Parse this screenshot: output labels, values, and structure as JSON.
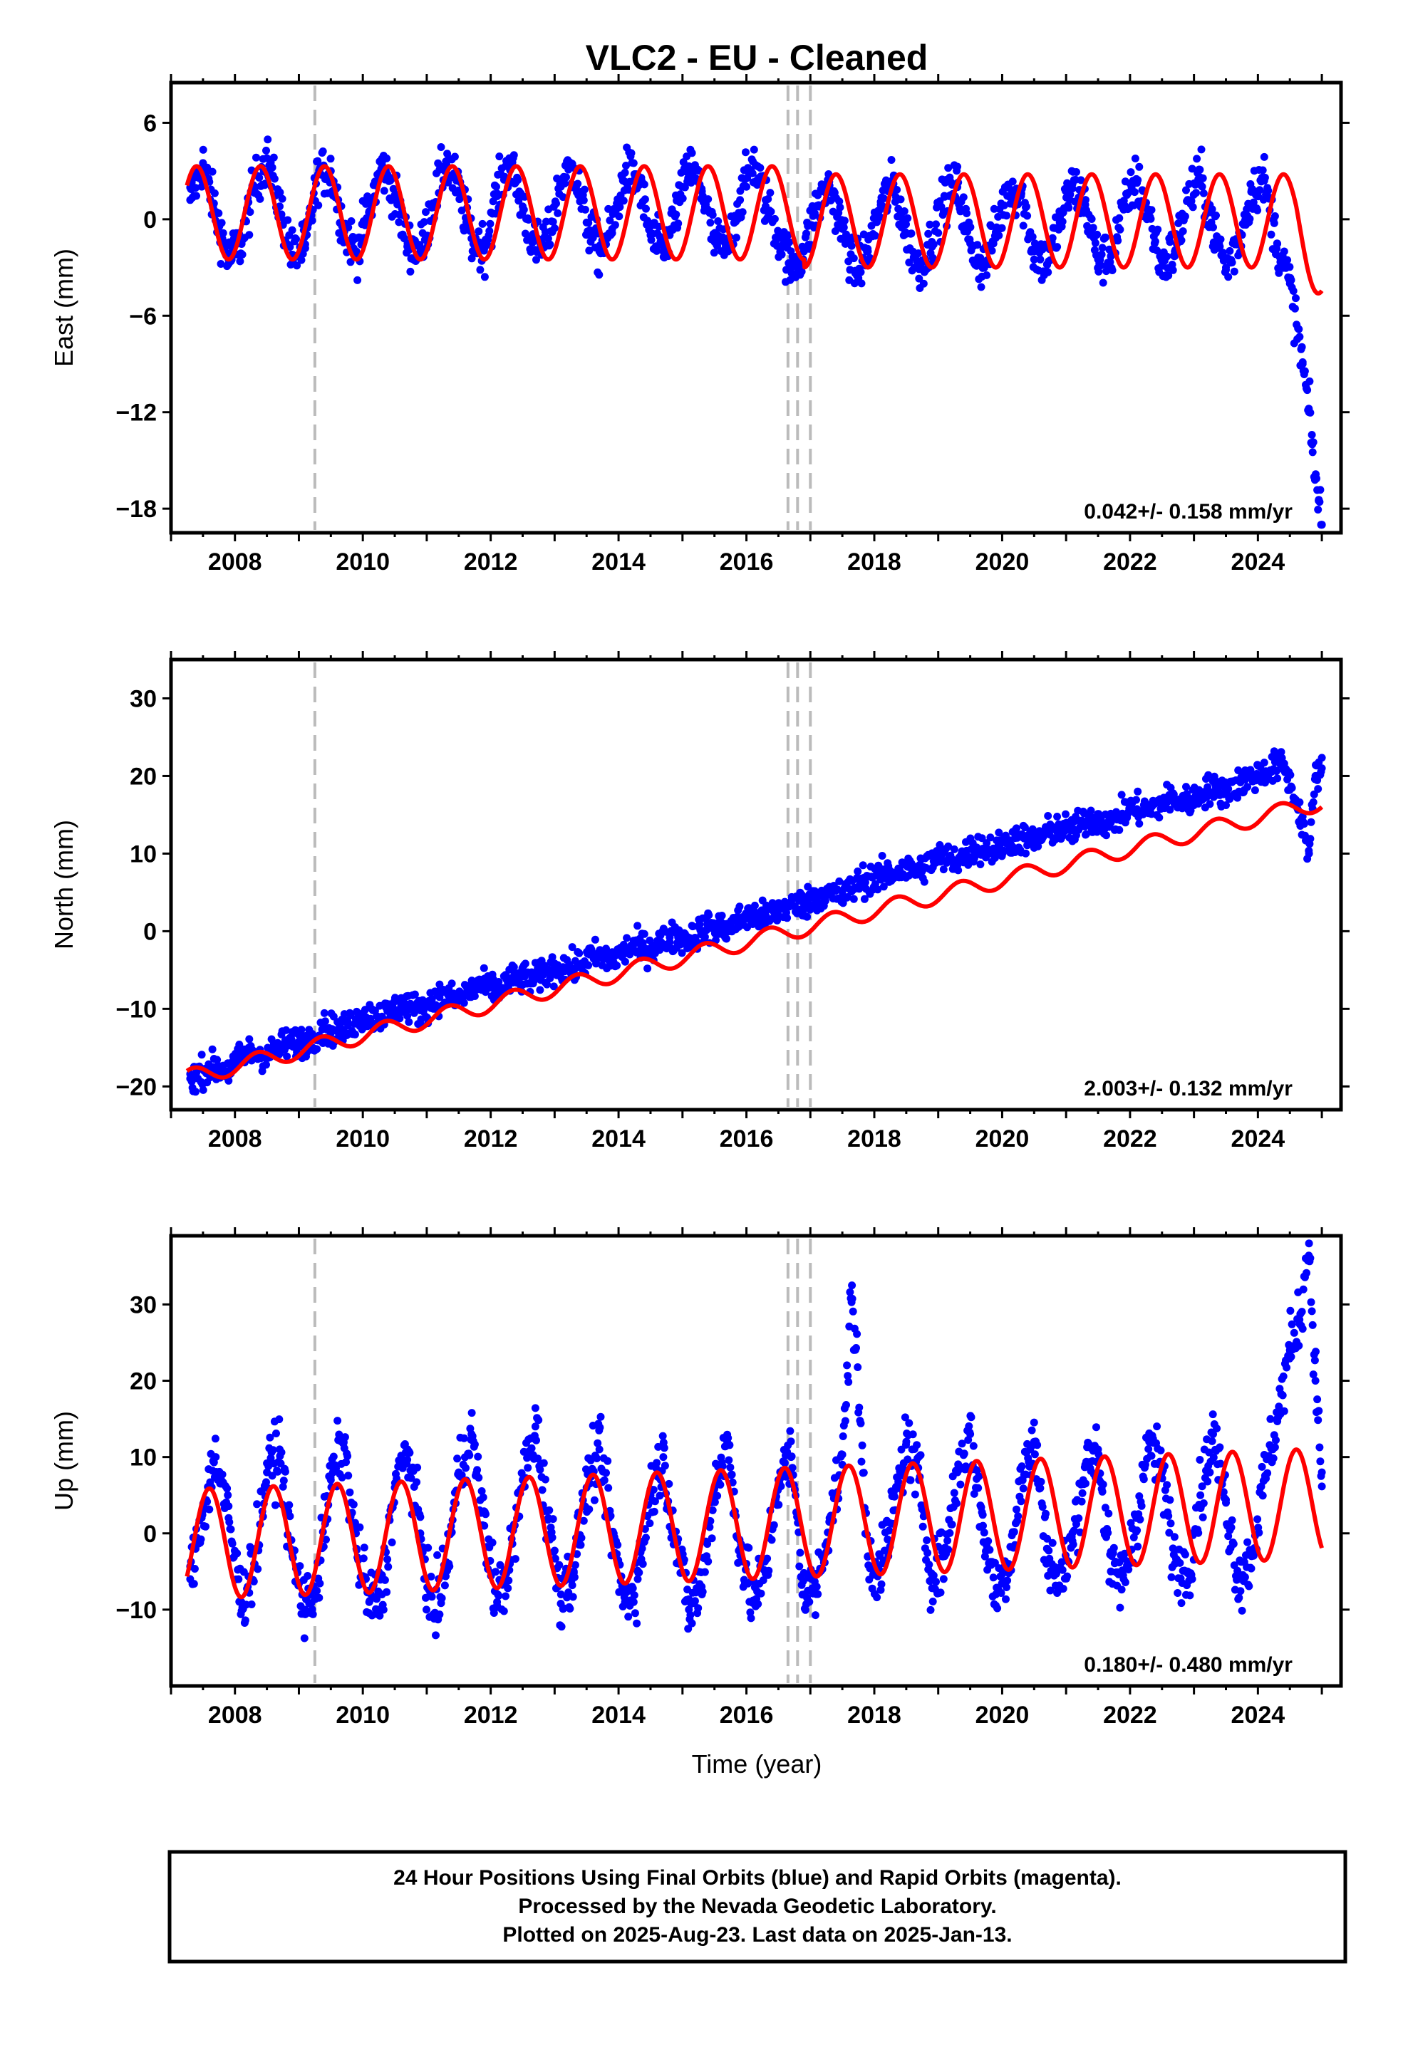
{
  "title": "VLC2  - EU - Cleaned",
  "footer": {
    "lines": [
      "24 Hour Positions Using Final Orbits (blue) and Rapid Orbits (magenta).",
      "Processed by the Nevada Geodetic Laboratory.",
      "Plotted on 2025-Aug-23. Last data on 2025-Jan-13."
    ]
  },
  "colors": {
    "data": "#0000ff",
    "model": "#ff0000",
    "breaks": "#bbbbbb",
    "frame": "#000000"
  },
  "chart_data": [
    {
      "type": "scatter",
      "panel": "east",
      "ylabel": "East (mm)",
      "xlabel": "",
      "xlim": [
        2007.0,
        2025.3
      ],
      "ylim": [
        -19.5,
        8.5
      ],
      "xticks": [
        2008,
        2010,
        2012,
        2014,
        2016,
        2018,
        2020,
        2022,
        2024
      ],
      "xtick_labels": [
        "2008",
        "2010",
        "2012",
        "2014",
        "2016",
        "2018",
        "2020",
        "2022",
        "2024"
      ],
      "yticks": [
        6,
        0,
        -6,
        -12,
        -18
      ],
      "ytick_labels": [
        "6",
        "0",
        "−6",
        "−12",
        "−18"
      ],
      "rate_label": "0.042+/- 0.158 mm/yr",
      "breaks": [
        2009.25,
        2016.65,
        2016.8,
        2017.0
      ],
      "series": [
        {
          "role": "data",
          "x": [
            2007.3,
            2007.5,
            2007.7,
            2007.9,
            2008.1,
            2008.3,
            2008.5,
            2008.7,
            2008.9,
            2009.1,
            2009.3,
            2009.5,
            2009.7,
            2009.9,
            2010.1,
            2010.3,
            2010.5,
            2010.7,
            2010.9,
            2011.1,
            2011.3,
            2011.5,
            2011.7,
            2011.9,
            2012.1,
            2012.3,
            2012.5,
            2012.7,
            2012.9,
            2013.1,
            2013.3,
            2013.5,
            2013.7,
            2013.9,
            2014.1,
            2014.3,
            2014.5,
            2014.7,
            2014.9,
            2015.1,
            2015.3,
            2015.5,
            2015.7,
            2015.9,
            2016.1,
            2016.3,
            2016.5,
            2016.7,
            2016.9,
            2017.1,
            2017.3,
            2017.5,
            2017.7,
            2017.9,
            2018.1,
            2018.3,
            2018.5,
            2018.7,
            2018.9,
            2019.1,
            2019.3,
            2019.5,
            2019.7,
            2019.9,
            2020.1,
            2020.3,
            2020.5,
            2020.7,
            2020.9,
            2021.1,
            2021.3,
            2021.5,
            2021.7,
            2021.9,
            2022.1,
            2022.3,
            2022.5,
            2022.7,
            2022.9,
            2023.1,
            2023.3,
            2023.5,
            2023.7,
            2023.9,
            2024.1,
            2024.3,
            2024.5,
            2024.7,
            2024.8,
            2024.85,
            2024.9,
            2024.95,
            2025.0
          ],
          "y": [
            1.2,
            3.5,
            0.4,
            -2.5,
            -1.5,
            2.0,
            3.8,
            0.8,
            -2.2,
            -1.8,
            2.8,
            3.0,
            -0.5,
            -2.0,
            0.5,
            3.4,
            1.5,
            -1.5,
            -2.0,
            1.0,
            3.6,
            1.8,
            -1.2,
            -1.8,
            1.6,
            3.5,
            0.8,
            -1.9,
            -1.2,
            2.4,
            3.2,
            -0.2,
            -2.0,
            -0.6,
            2.9,
            2.6,
            -1.0,
            -2.0,
            0.3,
            3.3,
            1.9,
            -1.4,
            -1.8,
            1.2,
            3.6,
            1.2,
            -1.0,
            -3.0,
            -2.0,
            0.8,
            2.1,
            -0.6,
            -3.2,
            -2.0,
            0.9,
            2.2,
            -0.9,
            -3.1,
            -1.4,
            1.4,
            2.0,
            -1.5,
            -3.0,
            -0.8,
            2.0,
            1.6,
            -2.0,
            -2.8,
            -0.2,
            2.2,
            0.9,
            -2.5,
            -2.3,
            0.6,
            2.5,
            0.2,
            -2.9,
            -2.0,
            1.2,
            2.6,
            -0.5,
            -3.0,
            -1.4,
            1.8,
            2.4,
            -1.5,
            -4.0,
            -9.0,
            -12.0,
            -14.0,
            -16.0,
            -17.5,
            -19.0
          ]
        },
        {
          "role": "model",
          "amplitude": 2.9,
          "trend_mm_per_yr": 0.042,
          "offset_after_2016_9": -0.5
        }
      ]
    },
    {
      "type": "scatter",
      "panel": "north",
      "ylabel": "North (mm)",
      "xlabel": "",
      "xlim": [
        2007.0,
        2025.3
      ],
      "ylim": [
        -23,
        35
      ],
      "xticks": [
        2008,
        2010,
        2012,
        2014,
        2016,
        2018,
        2020,
        2022,
        2024
      ],
      "xtick_labels": [
        "2008",
        "2010",
        "2012",
        "2014",
        "2016",
        "2018",
        "2020",
        "2022",
        "2024"
      ],
      "yticks": [
        30,
        20,
        10,
        0,
        -10,
        -20
      ],
      "ytick_labels": [
        "30",
        "20",
        "10",
        "0",
        "−10",
        "−20"
      ],
      "rate_label": "2.003+/- 0.132 mm/yr",
      "breaks": [
        2009.25,
        2016.65,
        2016.8,
        2017.0
      ],
      "series": [
        {
          "role": "data",
          "x": [
            2007.3,
            2007.6,
            2007.9,
            2008.2,
            2008.5,
            2008.8,
            2009.1,
            2009.4,
            2009.7,
            2010.0,
            2010.3,
            2010.6,
            2010.9,
            2011.2,
            2011.5,
            2011.8,
            2012.1,
            2012.4,
            2012.7,
            2013.0,
            2013.3,
            2013.6,
            2013.9,
            2014.2,
            2014.5,
            2014.8,
            2015.1,
            2015.4,
            2015.7,
            2016.0,
            2016.3,
            2016.6,
            2016.9,
            2017.2,
            2017.5,
            2017.8,
            2018.1,
            2018.4,
            2018.7,
            2019.0,
            2019.3,
            2019.6,
            2019.9,
            2020.2,
            2020.5,
            2020.8,
            2021.1,
            2021.4,
            2021.7,
            2022.0,
            2022.3,
            2022.6,
            2022.9,
            2023.2,
            2023.5,
            2023.8,
            2024.1,
            2024.4,
            2024.7,
            2024.8,
            2024.9,
            2025.0
          ],
          "y": [
            -19.0,
            -17.5,
            -18.0,
            -15.5,
            -16.0,
            -14.5,
            -14.2,
            -12.5,
            -12.8,
            -10.8,
            -11.0,
            -9.5,
            -10.2,
            -8.5,
            -8.8,
            -7.0,
            -7.5,
            -6.0,
            -6.2,
            -4.6,
            -4.8,
            -3.2,
            -3.6,
            -2.0,
            -2.2,
            -0.8,
            -1.0,
            0.6,
            0.3,
            2.0,
            1.8,
            3.2,
            3.5,
            5.0,
            4.5,
            6.5,
            7.0,
            7.8,
            8.0,
            9.5,
            9.2,
            10.8,
            10.5,
            12.0,
            11.5,
            13.2,
            13.0,
            14.5,
            14.0,
            15.8,
            15.6,
            17.0,
            16.6,
            18.2,
            18.0,
            19.5,
            20.5,
            21.5,
            14.0,
            10.0,
            20.0,
            21.0
          ]
        },
        {
          "role": "model",
          "amplitude": 1.1,
          "trend_mm_per_yr": 2.003,
          "value_at_2007_2": -19.0
        }
      ]
    },
    {
      "type": "scatter",
      "panel": "up",
      "ylabel": "Up (mm)",
      "xlabel": "Time (year)",
      "xlim": [
        2007.0,
        2025.3
      ],
      "ylim": [
        -20,
        39
      ],
      "xticks": [
        2008,
        2010,
        2012,
        2014,
        2016,
        2018,
        2020,
        2022,
        2024
      ],
      "xtick_labels": [
        "2008",
        "2010",
        "2012",
        "2014",
        "2016",
        "2018",
        "2020",
        "2022",
        "2024"
      ],
      "yticks": [
        30,
        20,
        10,
        0,
        -10
      ],
      "ytick_labels": [
        "30",
        "20",
        "10",
        "0",
        "−10"
      ],
      "rate_label": "0.180+/- 0.480 mm/yr",
      "breaks": [
        2009.25,
        2016.65,
        2016.8,
        2017.0
      ],
      "series": [
        {
          "role": "data",
          "x": [
            2007.3,
            2007.5,
            2007.7,
            2007.9,
            2008.1,
            2008.3,
            2008.5,
            2008.7,
            2008.9,
            2009.1,
            2009.3,
            2009.5,
            2009.7,
            2009.9,
            2010.1,
            2010.3,
            2010.5,
            2010.7,
            2010.9,
            2011.1,
            2011.3,
            2011.5,
            2011.7,
            2011.9,
            2012.1,
            2012.3,
            2012.5,
            2012.7,
            2012.9,
            2013.1,
            2013.3,
            2013.5,
            2013.7,
            2013.9,
            2014.1,
            2014.3,
            2014.5,
            2014.7,
            2014.9,
            2015.1,
            2015.3,
            2015.5,
            2015.7,
            2015.9,
            2016.1,
            2016.3,
            2016.5,
            2016.7,
            2016.9,
            2017.1,
            2017.3,
            2017.5,
            2017.65,
            2017.9,
            2018.1,
            2018.3,
            2018.5,
            2018.7,
            2018.9,
            2019.1,
            2019.3,
            2019.5,
            2019.7,
            2019.9,
            2020.1,
            2020.3,
            2020.5,
            2020.7,
            2020.9,
            2021.1,
            2021.3,
            2021.5,
            2021.7,
            2021.9,
            2022.1,
            2022.3,
            2022.5,
            2022.7,
            2022.9,
            2023.1,
            2023.3,
            2023.5,
            2023.7,
            2023.9,
            2024.1,
            2024.3,
            2024.5,
            2024.65,
            2024.8,
            2024.9,
            2025.0
          ],
          "y": [
            -6.0,
            3.0,
            10.0,
            2.0,
            -9.0,
            -4.0,
            8.0,
            11.0,
            -3.0,
            -10.0,
            -6.0,
            7.0,
            12.0,
            -2.0,
            -9.0,
            -8.0,
            6.0,
            11.0,
            0.0,
            -11.0,
            -5.0,
            8.0,
            13.0,
            1.0,
            -9.0,
            -4.0,
            7.0,
            14.0,
            2.0,
            -8.0,
            -5.0,
            6.0,
            11.0,
            0.0,
            -9.0,
            -6.0,
            5.0,
            10.0,
            -1.0,
            -10.0,
            -7.0,
            6.0,
            12.0,
            -2.0,
            -9.0,
            -5.0,
            7.0,
            10.0,
            -8.0,
            -7.0,
            2.0,
            9.0,
            32.5,
            -3.0,
            -5.0,
            3.0,
            12.0,
            7.0,
            -6.0,
            -3.0,
            8.0,
            13.0,
            1.0,
            -8.0,
            -4.0,
            7.0,
            12.0,
            -2.0,
            -7.0,
            -1.0,
            9.0,
            11.0,
            -5.0,
            -6.0,
            2.0,
            12.0,
            8.0,
            -4.0,
            -5.0,
            5.0,
            13.0,
            4.0,
            -6.0,
            -3.0,
            7.0,
            15.0,
            24.0,
            28.0,
            38.0,
            20.0,
            8.0
          ]
        },
        {
          "role": "model",
          "amplitude": 7.2,
          "trend_mm_per_yr": 0.18
        }
      ]
    }
  ]
}
